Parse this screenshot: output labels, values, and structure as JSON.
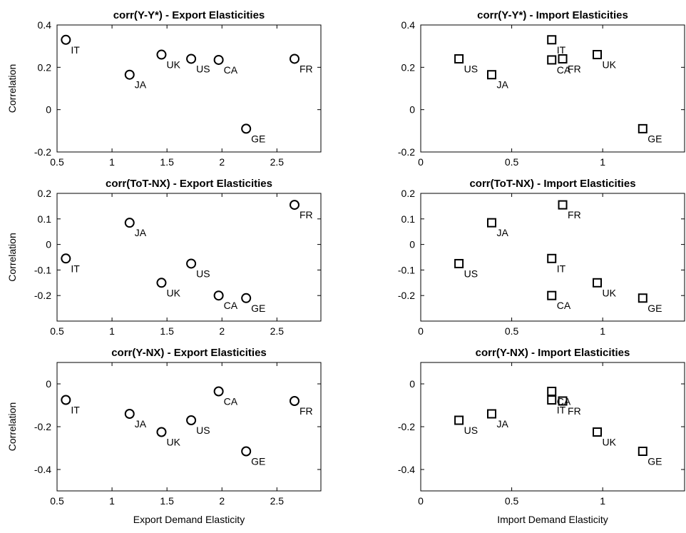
{
  "chart_data": [
    {
      "type": "scatter",
      "title": "corr(Y-Y*) - Export Elasticities",
      "ylabel": "Correlation",
      "marker": "circle",
      "color": "#000000",
      "labels": [
        "IT",
        "JA",
        "UK",
        "US",
        "CA",
        "GE",
        "FR"
      ],
      "x": [
        0.58,
        1.16,
        1.45,
        1.72,
        1.97,
        2.22,
        2.66
      ],
      "values": [
        0.33,
        0.165,
        0.26,
        0.24,
        0.235,
        -0.09,
        0.24
      ],
      "xlim": [
        0.5,
        2.9
      ],
      "xticks": [
        0.5,
        1,
        1.5,
        2,
        2.5
      ],
      "ylim": [
        -0.2,
        0.4
      ],
      "yticks": [
        -0.2,
        0,
        0.2,
        0.4
      ]
    },
    {
      "type": "scatter",
      "title": "corr(Y-Y*) - Import Elasticities",
      "marker": "square",
      "color": "#000000",
      "labels": [
        "IT",
        "JA",
        "UK",
        "US",
        "CA",
        "GE",
        "FR"
      ],
      "x": [
        0.72,
        0.39,
        0.97,
        0.21,
        0.72,
        1.22,
        0.78
      ],
      "values": [
        0.33,
        0.165,
        0.26,
        0.24,
        0.235,
        -0.09,
        0.24
      ],
      "xlim": [
        0,
        1.45
      ],
      "xticks": [
        0,
        0.5,
        1
      ],
      "ylim": [
        -0.2,
        0.4
      ],
      "yticks": [
        -0.2,
        0,
        0.2,
        0.4
      ]
    },
    {
      "type": "scatter",
      "title": "corr(ToT-NX) - Export Elasticities",
      "ylabel": "Correlation",
      "marker": "circle",
      "color": "#000000",
      "labels": [
        "IT",
        "JA",
        "UK",
        "US",
        "CA",
        "GE",
        "FR"
      ],
      "x": [
        0.58,
        1.16,
        1.45,
        1.72,
        1.97,
        2.22,
        2.66
      ],
      "values": [
        -0.055,
        0.085,
        -0.15,
        -0.075,
        -0.2,
        -0.21,
        0.155
      ],
      "xlim": [
        0.5,
        2.9
      ],
      "xticks": [
        0.5,
        1,
        1.5,
        2,
        2.5
      ],
      "ylim": [
        -0.3,
        0.2
      ],
      "yticks": [
        -0.2,
        -0.1,
        0,
        0.1,
        0.2
      ]
    },
    {
      "type": "scatter",
      "title": "corr(ToT-NX) - Import Elasticities",
      "marker": "square",
      "color": "#000000",
      "labels": [
        "IT",
        "JA",
        "UK",
        "US",
        "CA",
        "GE",
        "FR"
      ],
      "x": [
        0.72,
        0.39,
        0.97,
        0.21,
        0.72,
        1.22,
        0.78
      ],
      "values": [
        -0.055,
        0.085,
        -0.15,
        -0.075,
        -0.2,
        -0.21,
        0.155
      ],
      "xlim": [
        0,
        1.45
      ],
      "xticks": [
        0,
        0.5,
        1
      ],
      "ylim": [
        -0.3,
        0.2
      ],
      "yticks": [
        -0.2,
        -0.1,
        0,
        0.1,
        0.2
      ]
    },
    {
      "type": "scatter",
      "title": "corr(Y-NX) - Export Elasticities",
      "xlabel": "Export Demand Elasticity",
      "ylabel": "Correlation",
      "marker": "circle",
      "color": "#000000",
      "labels": [
        "IT",
        "JA",
        "UK",
        "US",
        "CA",
        "GE",
        "FR"
      ],
      "x": [
        0.58,
        1.16,
        1.45,
        1.72,
        1.97,
        2.22,
        2.66
      ],
      "values": [
        -0.075,
        -0.14,
        -0.225,
        -0.17,
        -0.035,
        -0.315,
        -0.08
      ],
      "xlim": [
        0.5,
        2.9
      ],
      "xticks": [
        0.5,
        1,
        1.5,
        2,
        2.5
      ],
      "ylim": [
        -0.5,
        0.1
      ],
      "yticks": [
        -0.4,
        -0.2,
        0
      ]
    },
    {
      "type": "scatter",
      "title": "corr(Y-NX) - Import Elasticities",
      "xlabel": "Import Demand Elasticity",
      "marker": "square",
      "color": "#000000",
      "labels": [
        "IT",
        "JA",
        "UK",
        "US",
        "CA",
        "GE",
        "FR"
      ],
      "x": [
        0.72,
        0.39,
        0.97,
        0.21,
        0.72,
        1.22,
        0.78
      ],
      "values": [
        -0.075,
        -0.14,
        -0.225,
        -0.17,
        -0.035,
        -0.315,
        -0.08
      ],
      "xlim": [
        0,
        1.45
      ],
      "xticks": [
        0,
        0.5,
        1
      ],
      "ylim": [
        -0.5,
        0.1
      ],
      "yticks": [
        -0.4,
        -0.2,
        0
      ]
    }
  ]
}
